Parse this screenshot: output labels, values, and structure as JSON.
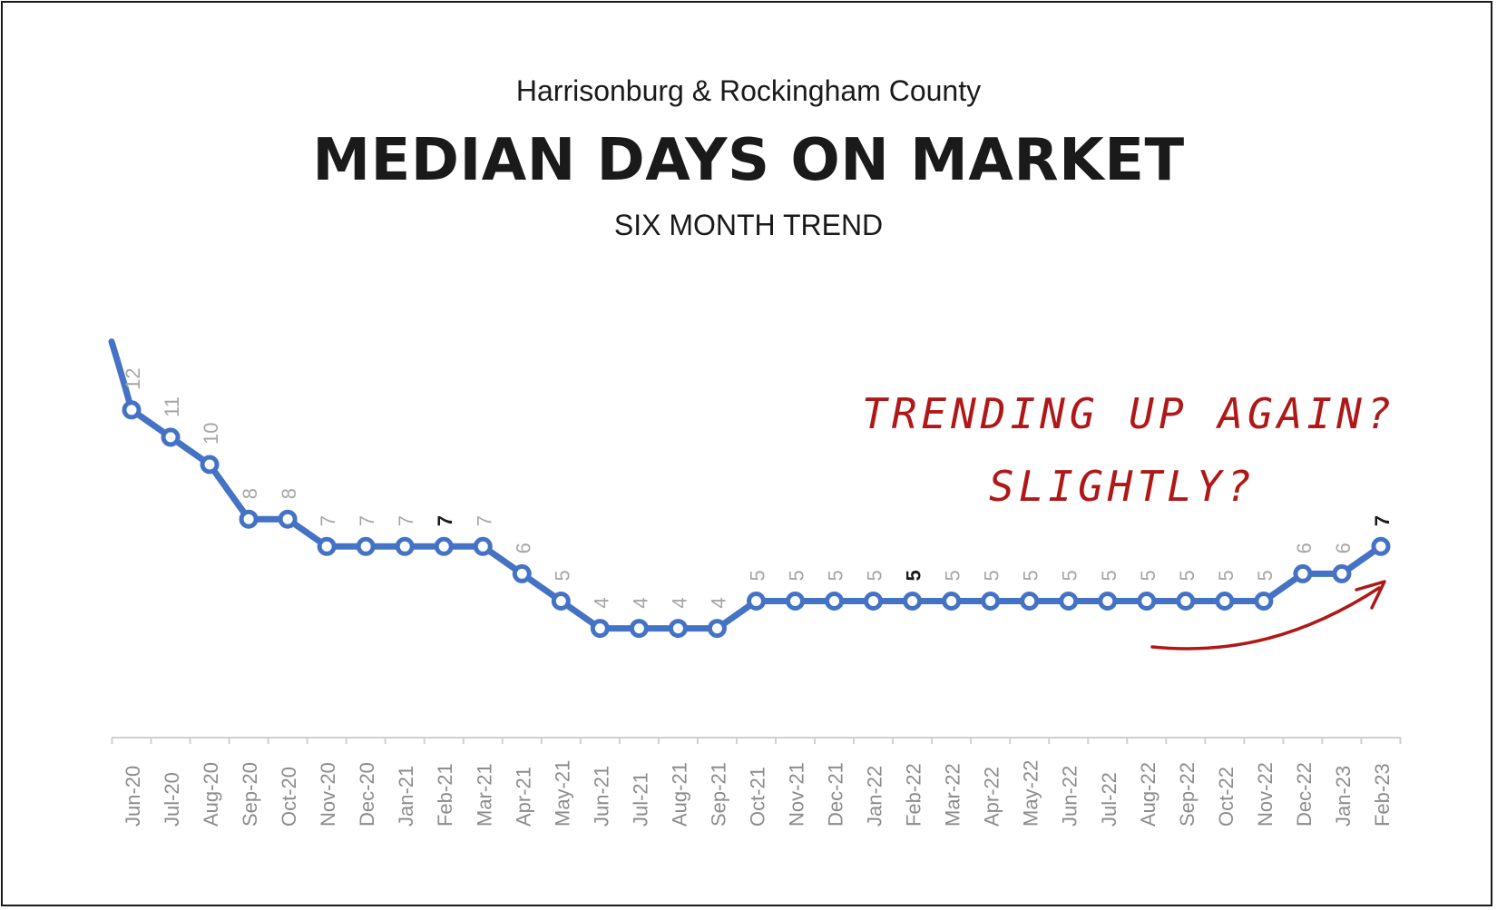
{
  "header": {
    "subtitle": "Harrisonburg & Rockingham County",
    "title": "MEDIAN DAYS ON MARKET",
    "caption": "SIX MONTH TREND"
  },
  "annotation": {
    "line1": "TRENDING UP AGAIN?",
    "line2": "SLIGHTLY?",
    "color": "#b01818"
  },
  "chart_data": {
    "type": "line",
    "title": "MEDIAN DAYS ON MARKET",
    "subtitle": "SIX MONTH TREND",
    "series_color": "#4472c4",
    "label_color": "#a6a6a6",
    "highlight_label_color": "#1a1a1a",
    "categories": [
      "Jun-20",
      "Jul-20",
      "Aug-20",
      "Sep-20",
      "Oct-20",
      "Nov-20",
      "Dec-20",
      "Jan-21",
      "Feb-21",
      "Mar-21",
      "Apr-21",
      "May-21",
      "Jun-21",
      "Jul-21",
      "Aug-21",
      "Sep-21",
      "Oct-21",
      "Nov-21",
      "Dec-21",
      "Jan-22",
      "Feb-22",
      "Mar-22",
      "Apr-22",
      "May-22",
      "Jun-22",
      "Jul-22",
      "Aug-22",
      "Sep-22",
      "Oct-22",
      "Nov-22",
      "Dec-22",
      "Jan-23",
      "Feb-23"
    ],
    "values": [
      12.0,
      11.0,
      10.0,
      8.0,
      8.0,
      7.0,
      7.0,
      7.0,
      7.0,
      7.0,
      6.0,
      5.0,
      4.0,
      4.0,
      4.0,
      4.0,
      5.0,
      5.0,
      5.0,
      5.0,
      5.0,
      5.0,
      5.0,
      5.0,
      5.0,
      5.0,
      5.0,
      5.0,
      5.0,
      5.0,
      6.0,
      6.0,
      7.0
    ],
    "data_labels": [
      "12",
      "11",
      "10",
      "8",
      "8",
      "7",
      "7",
      "7",
      "7",
      "7",
      "6",
      "5",
      "4",
      "4",
      "4",
      "4",
      "5",
      "5",
      "5",
      "5",
      "5",
      "5",
      "5",
      "5",
      "5",
      "5",
      "5",
      "5",
      "5",
      "5",
      "6",
      "6",
      "7"
    ],
    "highlight_indices": [
      8,
      20,
      32
    ],
    "leading_segment_from_value": 14.5,
    "ylim": [
      0,
      15.5
    ],
    "grid": false,
    "legend": "none"
  }
}
